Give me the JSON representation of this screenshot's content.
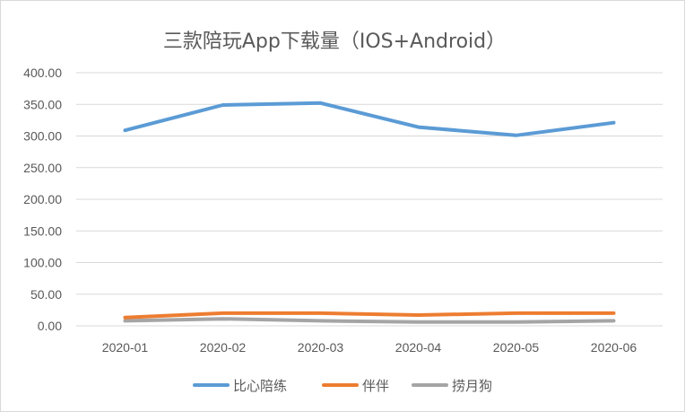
{
  "chart_data": {
    "type": "line",
    "title": "三款陪玩App下载量（IOS+Android）",
    "categories": [
      "2020-01",
      "2020-02",
      "2020-03",
      "2020-04",
      "2020-05",
      "2020-06"
    ],
    "yticks": [
      "0.00",
      "50.00",
      "100.00",
      "150.00",
      "200.00",
      "250.00",
      "300.00",
      "350.00",
      "400.00"
    ],
    "ylim": [
      0,
      400
    ],
    "grid": true,
    "legend_position": "bottom",
    "series": [
      {
        "name": "比心陪练",
        "color": "#5b9bd5",
        "values": [
          309,
          349,
          352,
          314,
          301,
          321
        ]
      },
      {
        "name": "伴伴",
        "color": "#ed7d31",
        "values": [
          13,
          20,
          20,
          17,
          20,
          20
        ]
      },
      {
        "name": "捞月狗",
        "color": "#a5a5a5",
        "values": [
          8,
          11,
          8,
          6,
          6,
          8
        ]
      }
    ]
  }
}
